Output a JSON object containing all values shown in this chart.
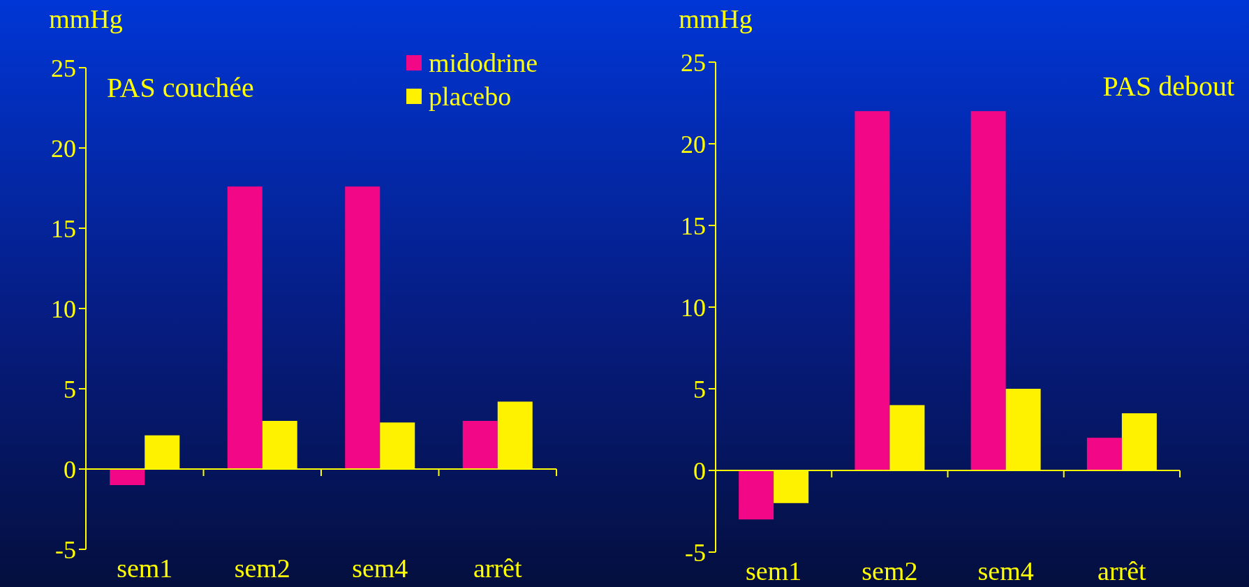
{
  "chart_data": [
    {
      "type": "bar",
      "title": "PAS couchée",
      "ylabel": "mmHg",
      "categories": [
        "sem1",
        "sem2",
        "sem4",
        "arrêt"
      ],
      "series": [
        {
          "name": "midodrine",
          "color": "#f20886",
          "values": [
            -1,
            17.6,
            17.6,
            3
          ]
        },
        {
          "name": "placebo",
          "color": "#fff200",
          "values": [
            2.1,
            3,
            2.9,
            4.2
          ]
        }
      ],
      "ylim": [
        -5,
        25
      ],
      "yticks": [
        -5,
        0,
        5,
        10,
        15,
        20,
        25
      ],
      "legend": "top right",
      "ref_lines": [
        {
          "axis": "y",
          "value": 0,
          "color": "#ffff00"
        }
      ]
    },
    {
      "type": "bar",
      "title": "PAS debout",
      "ylabel": "mmHg",
      "categories": [
        "sem1",
        "sem2",
        "sem4",
        "arrêt"
      ],
      "series": [
        {
          "color": "#f20886",
          "values": [
            -3,
            22,
            22,
            2
          ]
        },
        {
          "color": "#fff200",
          "values": [
            -2,
            4,
            5,
            3.5
          ]
        }
      ],
      "ylim": [
        -5,
        25
      ],
      "yticks": [
        -5,
        0,
        5,
        10,
        15,
        20,
        25
      ],
      "ref_lines": [
        {
          "axis": "y",
          "value": 0,
          "color": "#ffff00"
        }
      ]
    }
  ]
}
